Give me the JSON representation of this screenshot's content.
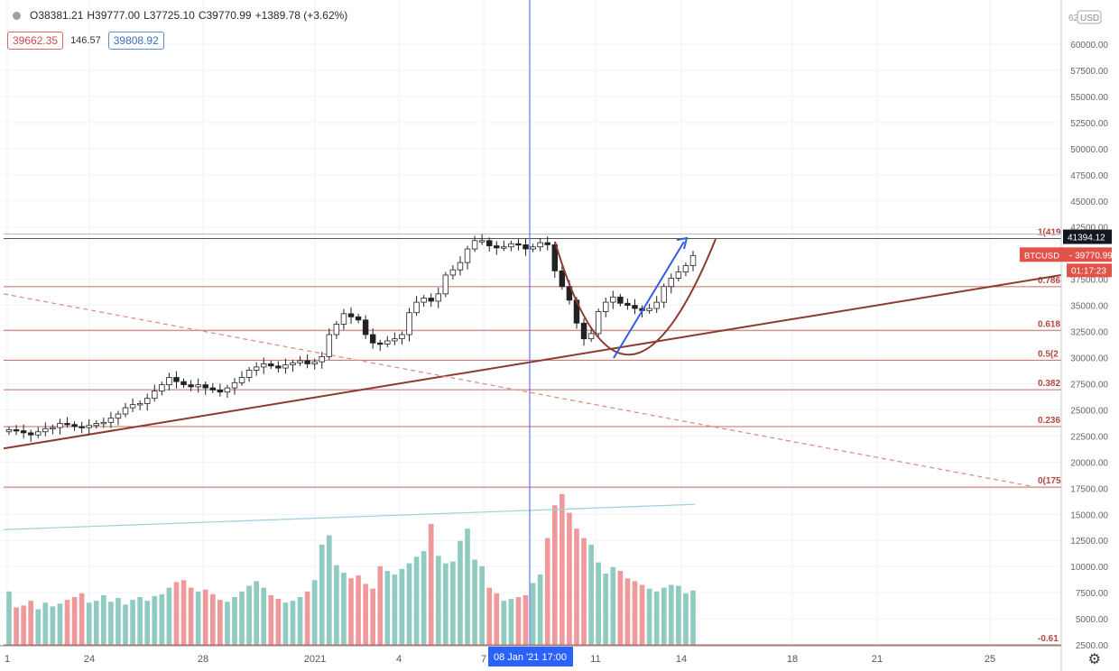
{
  "legend": {
    "O": "O38381.21",
    "H": "H39777.00",
    "L": "L37725.10",
    "C": "C39770.99",
    "change": "+1389.78 (+3.62%)"
  },
  "sub": {
    "sell": "39662.35",
    "spread": "146.57",
    "buy": "39808.92"
  },
  "currency": "USD",
  "top_price_label": "62",
  "price_labels": {
    "high": "41394.12",
    "symbol": "BTCUSD",
    "last": "39770.99",
    "countdown": "01:17:23"
  },
  "crosshair_label": "08 Jan '21   17:00",
  "colors": {
    "up": "#ffffff",
    "down": "#222222",
    "fib": "#c76a62",
    "trend": "#8b3a2e",
    "cursor": "#4a5de8",
    "vol_up": "#8fcbc0",
    "vol_down": "#ef9a9a",
    "arrow": "#2f5fe0"
  },
  "icons": {
    "settings": "gear-icon"
  },
  "chart_data": {
    "type": "candlestick",
    "symbol": "BTCUSD",
    "y_ticks": [
      "60000.00",
      "57500.00",
      "55000.00",
      "52500.00",
      "50000.00",
      "47500.00",
      "45000.00",
      "42500.00",
      "37500.00",
      "35000.00",
      "32500.00",
      "30000.00",
      "27500.00",
      "25000.00",
      "22500.00",
      "20000.00",
      "17500.00",
      "15000.00",
      "12500.00",
      "10000.00",
      "7500.00",
      "5000.00",
      "2500.00"
    ],
    "ylim": [
      2500,
      62000
    ],
    "x_ticks": [
      "1",
      "24",
      "28",
      "2021",
      "4",
      "7",
      "11",
      "14",
      "18",
      "21",
      "25"
    ],
    "fib_levels": [
      {
        "label": "1(419",
        "value": 41394
      },
      {
        "label": "0.786",
        "value": 36790
      },
      {
        "label": "0.618",
        "value": 32610
      },
      {
        "label": "0.5(2",
        "value": 29750
      },
      {
        "label": "0.382",
        "value": 26920
      },
      {
        "label": "0.236",
        "value": 23400
      },
      {
        "label": "0(175",
        "value": 17600
      },
      {
        "label": "-0.61",
        "value": 2500
      }
    ],
    "closes": [
      23100,
      23000,
      22800,
      22600,
      22900,
      23200,
      23300,
      23700,
      23600,
      23400,
      23300,
      23500,
      23700,
      23800,
      24200,
      24600,
      25200,
      25500,
      25600,
      26100,
      26800,
      27400,
      28100,
      27700,
      27400,
      27200,
      27400,
      27100,
      26900,
      26700,
      27100,
      27600,
      28100,
      28800,
      29100,
      29400,
      29200,
      29000,
      29300,
      29500,
      29700,
      29400,
      29600,
      30100,
      32200,
      33200,
      34200,
      33900,
      33600,
      32200,
      31400,
      31300,
      31600,
      31800,
      32200,
      34300,
      35300,
      35700,
      35400,
      36100,
      37900,
      38400,
      39100,
      40400,
      41200,
      41200,
      40700,
      40500,
      40600,
      40900,
      40800,
      40400,
      40600,
      41000,
      40800,
      38300,
      36800,
      35500,
      33300,
      31800,
      32300,
      34400,
      35300,
      35800,
      35200,
      35000,
      34700,
      34500,
      34700,
      35300,
      36800,
      37600,
      38200,
      38800,
      39771
    ],
    "volume_scale": [
      0,
      15000
    ],
    "volumes": [
      5800,
      4100,
      4300,
      4800,
      3900,
      4600,
      4200,
      4500,
      4900,
      5200,
      5600,
      4600,
      4800,
      5400,
      4700,
      5100,
      4400,
      4900,
      5200,
      4800,
      5300,
      5500,
      6200,
      6800,
      7000,
      6200,
      5800,
      6000,
      5500,
      4900,
      4700,
      5200,
      5800,
      6400,
      6900,
      6200,
      5400,
      5000,
      4600,
      4800,
      5200,
      5800,
      7000,
      10800,
      11800,
      8600,
      7800,
      7200,
      7500,
      6600,
      6100,
      8500,
      8000,
      7600,
      8200,
      8800,
      9500,
      10100,
      13000,
      9600,
      8800,
      9000,
      11200,
      12500,
      9200,
      8500,
      6200,
      5600,
      4800,
      5000,
      5200,
      5400,
      6700,
      7600,
      11500,
      15000,
      16200,
      14200,
      12500,
      11500,
      10800,
      8900,
      7700,
      8400,
      8000,
      7200,
      6900,
      6500,
      6100,
      5800,
      6200,
      6500,
      6400,
      5600,
      5900
    ],
    "trendline_up": {
      "from": [
        0,
        21300
      ],
      "to": [
        "end",
        37900
      ]
    },
    "trendline_down_dashed": {
      "from": [
        0,
        36100
      ],
      "to": [
        "end",
        17600
      ]
    },
    "volume_ma": {
      "from": 12400,
      "to": 15100
    },
    "cursor_date": "08 Jan '21 17:00"
  }
}
